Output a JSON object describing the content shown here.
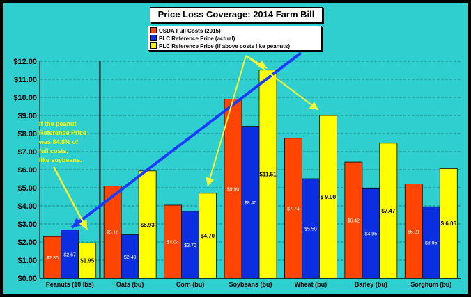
{
  "chart_data": {
    "type": "bar",
    "title": "Price Loss Coverage:  2014 Farm Bill",
    "categories": [
      "Peanuts (10 lbs)",
      "Oats (bu)",
      "Corn (bu)",
      "Soybeans (bu)",
      "Wheat (bu)",
      "Barley (bu)",
      "Sorghum (bu)"
    ],
    "series": [
      {
        "name": "USDA Full Costs (2015)",
        "color": "#ff4500",
        "values": [
          2.3,
          5.1,
          4.04,
          9.9,
          7.74,
          6.42,
          5.21
        ],
        "labels": [
          "$2.30",
          "$5.10",
          "$4.04",
          "$9.90",
          "$7.74",
          "$6.42",
          "$5.21"
        ]
      },
      {
        "name": "PLC Reference Price    (actual)",
        "color": "#0b2ee0",
        "values": [
          2.67,
          2.4,
          3.7,
          8.4,
          5.5,
          4.95,
          3.95
        ],
        "labels": [
          "$2.67",
          "$2.40",
          "$3.70",
          "$8.40",
          "$5.50",
          "$4.95",
          "$3.95"
        ]
      },
      {
        "name": "PLC Reference Price    (if above costs like peanuts)",
        "color": "#ffff00",
        "values": [
          1.95,
          5.93,
          4.7,
          11.51,
          9.0,
          7.47,
          6.06
        ],
        "labels": [
          "$1.95",
          "$5.93",
          "$4.70",
          "$11.51",
          "$ 9.00",
          "$7.47",
          "$ 6.06"
        ]
      }
    ],
    "yticks": [
      "$0.00",
      "$1.00",
      "$2.00",
      "$3.00",
      "$4.00",
      "$5.00",
      "$6.00",
      "$7.00",
      "$8.00",
      "$9.00",
      "$10.00",
      "$11.00",
      "$12.00"
    ],
    "ylim": [
      0,
      12
    ],
    "grid": true,
    "legend_position": "top-center",
    "annotation": {
      "lines": [
        "If the peanut",
        "Reference Price",
        "was 84.8% of",
        "full costs,",
        "like soybeans."
      ]
    },
    "colors": {
      "background": "#2fcfcf",
      "gridline": "#1a8a8a",
      "arrow_blue": "#1a3cff",
      "arrow_yellow": "#ffff33"
    }
  }
}
